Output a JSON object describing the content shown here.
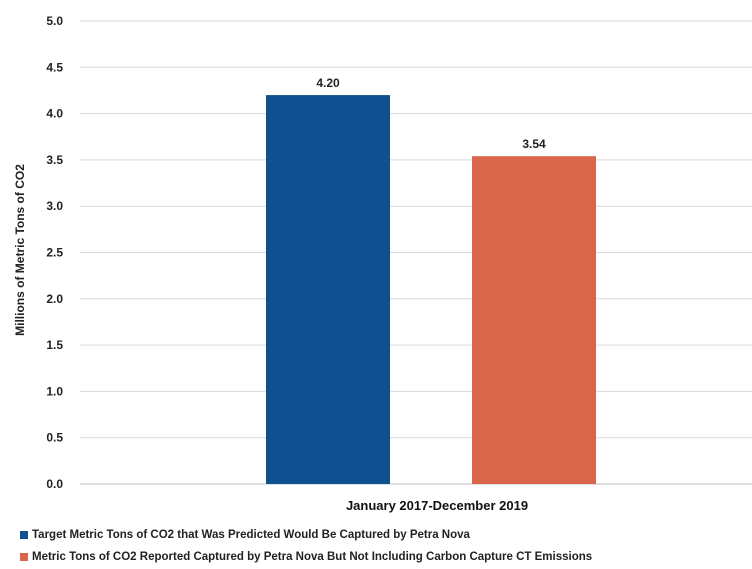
{
  "chart_data": {
    "type": "bar",
    "ylabel": "Millions of Metric Tons of CO2",
    "ylim": [
      0,
      5.0
    ],
    "yticks": [
      "0.0",
      "0.5",
      "1.0",
      "1.5",
      "2.0",
      "2.5",
      "3.0",
      "3.5",
      "4.0",
      "4.5",
      "5.0"
    ],
    "grid": true,
    "legend_position": "bottom",
    "categories": [
      "January 2017-December 2019"
    ],
    "series": [
      {
        "name": "Target Metric Tons of CO2 that Was Predicted Would Be Captured by Petra Nova",
        "values": [
          4.2
        ],
        "label": "4.20",
        "color": "#0f5090"
      },
      {
        "name": "Metric Tons of CO2 Reported Captured by Petra Nova But Not Including Carbon Capture CT Emissions",
        "values": [
          3.54
        ],
        "label": "3.54",
        "color": "#d9654b"
      }
    ]
  }
}
